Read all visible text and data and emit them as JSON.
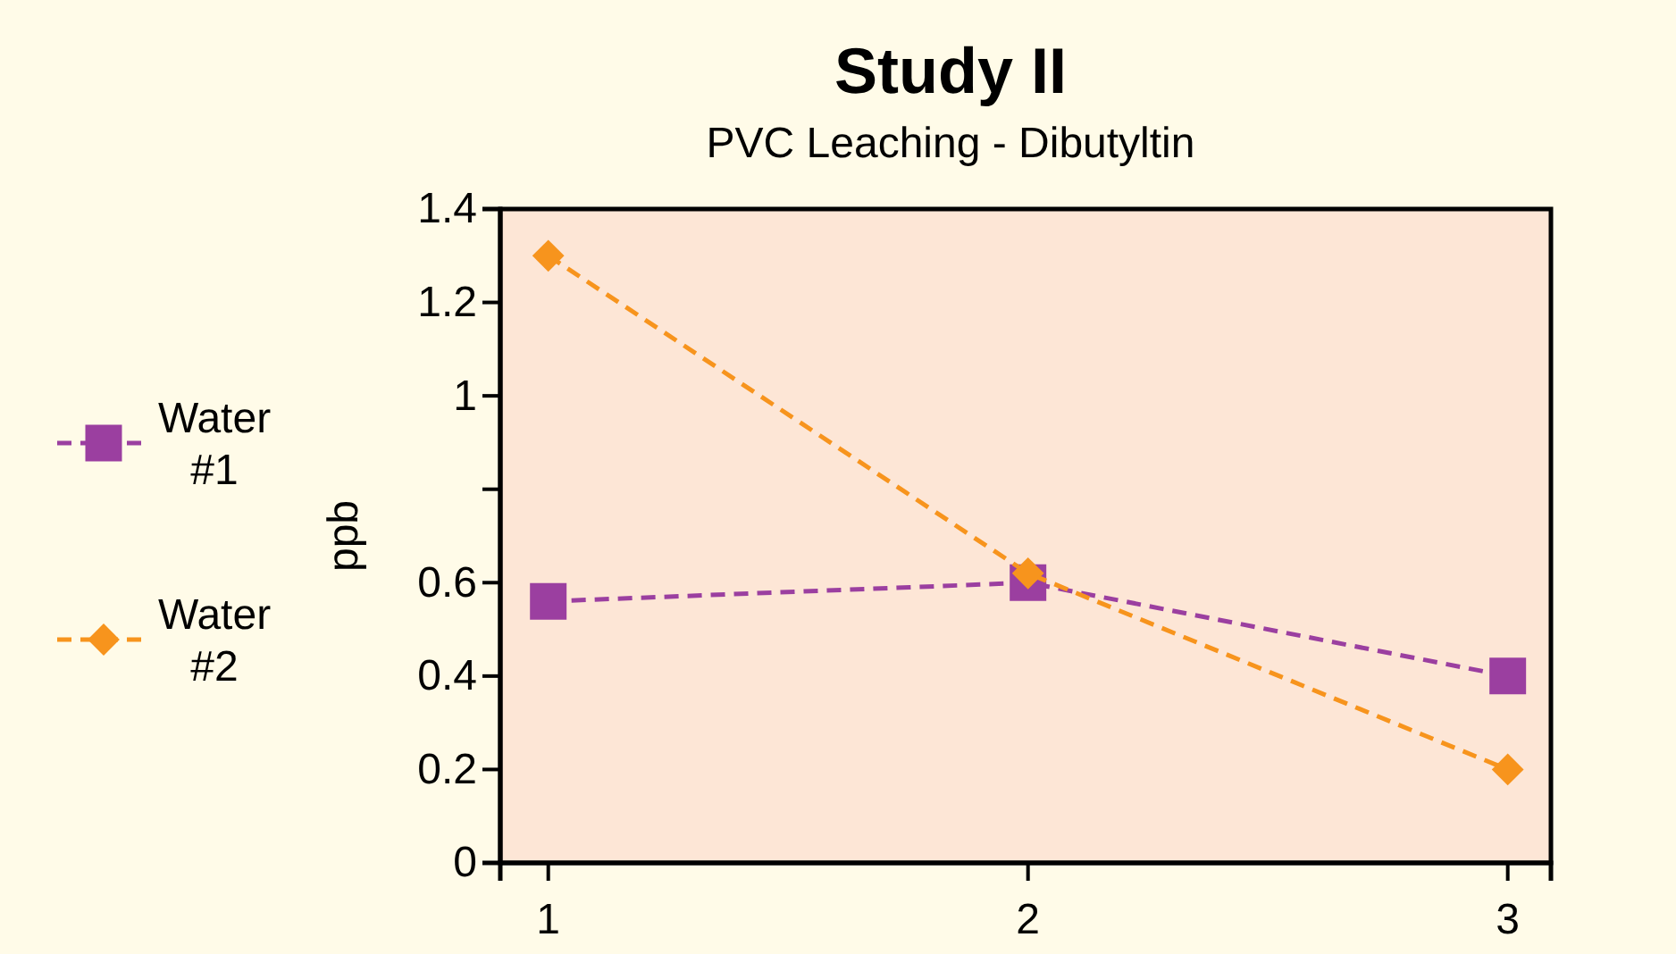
{
  "chart_data": {
    "type": "line",
    "title": "Study II",
    "subtitle": "PVC Leaching - Dibutyltin",
    "ylabel": "ppb",
    "x": [
      1,
      2,
      3
    ],
    "xlim": [
      0.9,
      3.09
    ],
    "xticks": [
      1,
      2,
      3
    ],
    "ylim": [
      0,
      1.4
    ],
    "yticks": [
      0,
      0.2,
      0.4,
      0.6,
      {
        "value": 0.8,
        "label": null
      },
      1,
      1.2,
      1.4
    ],
    "series": [
      {
        "name": "Water #1",
        "color": "#9b3fa0",
        "values": [
          0.56,
          0.6,
          0.4
        ],
        "marker": "square"
      },
      {
        "name": "Water #2",
        "color": "#f7941d",
        "values": [
          1.3,
          0.62,
          0.2
        ],
        "marker": "diamond"
      }
    ],
    "line_style": "dashed",
    "legend": "left",
    "grid": false
  }
}
